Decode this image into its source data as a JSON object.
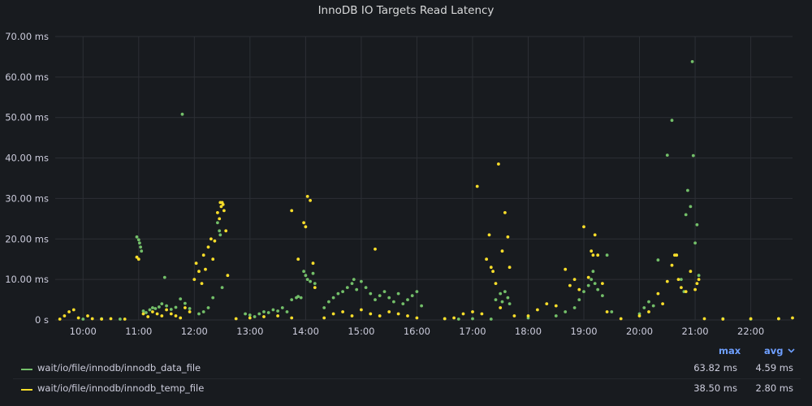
{
  "panel": {
    "title": "InnoDB IO Targets Read Latency"
  },
  "legend": {
    "header_max": "max",
    "header_avg": "avg",
    "sort_icon": "chevron-down-icon",
    "items": [
      {
        "name": "wait/io/file/innodb/innodb_data_file",
        "color": "#73bf69",
        "max": "63.82 ms",
        "avg": "4.59 ms"
      },
      {
        "name": "wait/io/file/innodb/innodb_temp_file",
        "color": "#fade2a",
        "max": "38.50 ms",
        "avg": "2.80 ms"
      }
    ]
  },
  "chart_data": {
    "type": "scatter",
    "title": "InnoDB IO Targets Read Latency",
    "xlabel": "",
    "ylabel": "",
    "x_ticks": [
      "10:00",
      "11:00",
      "12:00",
      "13:00",
      "14:00",
      "15:00",
      "16:00",
      "17:00",
      "18:00",
      "19:00",
      "20:00",
      "21:00",
      "22:00"
    ],
    "y_ticks": [
      "0 s",
      "10.00 ms",
      "20.00 ms",
      "30.00 ms",
      "40.00 ms",
      "50.00 ms",
      "60.00 ms",
      "70.00 ms"
    ],
    "xlim": [
      "09:30",
      "22:45"
    ],
    "ylim": [
      0,
      70
    ],
    "y_unit": "ms",
    "grid": true,
    "legend_position": "bottom",
    "series": [
      {
        "name": "wait/io/file/innodb/innodb_data_file",
        "color": "#73bf69",
        "points": [
          [
            "10:00",
            0.2
          ],
          [
            "10:20",
            0.3
          ],
          [
            "10:40",
            0.2
          ],
          [
            "10:58",
            20.5
          ],
          [
            "11:00",
            19.8
          ],
          [
            "11:01",
            19.0
          ],
          [
            "11:02",
            18.0
          ],
          [
            "11:03",
            17.0
          ],
          [
            "11:05",
            2.2
          ],
          [
            "11:08",
            1.8
          ],
          [
            "11:12",
            2.5
          ],
          [
            "11:15",
            3.0
          ],
          [
            "11:18",
            2.8
          ],
          [
            "11:22",
            3.2
          ],
          [
            "11:25",
            4.0
          ],
          [
            "11:28",
            10.5
          ],
          [
            "11:30",
            3.5
          ],
          [
            "11:35",
            2.6
          ],
          [
            "11:40",
            3.1
          ],
          [
            "11:45",
            5.2
          ],
          [
            "11:50",
            4.1
          ],
          [
            "11:55",
            2.8
          ],
          [
            "11:47",
            50.8
          ],
          [
            "12:05",
            1.5
          ],
          [
            "12:10",
            2.0
          ],
          [
            "12:15",
            3.0
          ],
          [
            "12:20",
            5.5
          ],
          [
            "12:25",
            24.0
          ],
          [
            "12:27",
            22.0
          ],
          [
            "12:28",
            21.0
          ],
          [
            "12:30",
            8.0
          ],
          [
            "12:55",
            1.5
          ],
          [
            "13:00",
            1.2
          ],
          [
            "13:05",
            0.8
          ],
          [
            "13:10",
            1.5
          ],
          [
            "13:15",
            2.0
          ],
          [
            "13:20",
            1.8
          ],
          [
            "13:25",
            2.5
          ],
          [
            "13:30",
            2.2
          ],
          [
            "13:35",
            3.0
          ],
          [
            "13:40",
            2.0
          ],
          [
            "13:45",
            5.0
          ],
          [
            "13:50",
            5.5
          ],
          [
            "13:52",
            5.8
          ],
          [
            "13:55",
            5.5
          ],
          [
            "13:58",
            12.0
          ],
          [
            "14:00",
            11.0
          ],
          [
            "14:02",
            10.0
          ],
          [
            "14:05",
            9.5
          ],
          [
            "14:08",
            11.5
          ],
          [
            "14:10",
            9.0
          ],
          [
            "14:20",
            3.0
          ],
          [
            "14:25",
            4.5
          ],
          [
            "14:30",
            5.5
          ],
          [
            "14:35",
            6.5
          ],
          [
            "14:40",
            7.0
          ],
          [
            "14:45",
            8.0
          ],
          [
            "14:50",
            9.0
          ],
          [
            "14:52",
            10.0
          ],
          [
            "14:55",
            7.5
          ],
          [
            "15:00",
            9.5
          ],
          [
            "15:05",
            8.0
          ],
          [
            "15:10",
            6.5
          ],
          [
            "15:15",
            5.0
          ],
          [
            "15:20",
            6.0
          ],
          [
            "15:25",
            7.0
          ],
          [
            "15:30",
            5.5
          ],
          [
            "15:35",
            4.5
          ],
          [
            "15:40",
            6.5
          ],
          [
            "15:45",
            4.0
          ],
          [
            "15:50",
            5.0
          ],
          [
            "15:55",
            6.0
          ],
          [
            "16:00",
            7.0
          ],
          [
            "16:05",
            3.5
          ],
          [
            "16:30",
            0.3
          ],
          [
            "16:45",
            0.2
          ],
          [
            "17:00",
            0.3
          ],
          [
            "17:20",
            0.2
          ],
          [
            "17:25",
            5.0
          ],
          [
            "17:30",
            6.5
          ],
          [
            "17:32",
            4.5
          ],
          [
            "17:35",
            7.0
          ],
          [
            "17:38",
            5.5
          ],
          [
            "17:40",
            4.0
          ],
          [
            "18:00",
            0.5
          ],
          [
            "18:30",
            1.0
          ],
          [
            "18:40",
            2.0
          ],
          [
            "18:50",
            3.0
          ],
          [
            "18:55",
            5.0
          ],
          [
            "19:00",
            7.0
          ],
          [
            "19:05",
            8.5
          ],
          [
            "19:08",
            10.0
          ],
          [
            "19:10",
            12.0
          ],
          [
            "19:12",
            9.0
          ],
          [
            "19:15",
            7.5
          ],
          [
            "19:20",
            6.0
          ],
          [
            "19:25",
            16.0
          ],
          [
            "19:30",
            2.0
          ],
          [
            "20:00",
            1.5
          ],
          [
            "20:05",
            3.0
          ],
          [
            "20:10",
            4.5
          ],
          [
            "20:15",
            3.5
          ],
          [
            "20:20",
            14.8
          ],
          [
            "20:30",
            40.7
          ],
          [
            "20:35",
            49.3
          ],
          [
            "20:40",
            16.0
          ],
          [
            "20:45",
            10.0
          ],
          [
            "20:50",
            26.0
          ],
          [
            "20:52",
            32.0
          ],
          [
            "20:55",
            28.0
          ],
          [
            "20:57",
            63.8
          ],
          [
            "20:58",
            40.6
          ],
          [
            "21:00",
            19.0
          ],
          [
            "21:02",
            23.5
          ],
          [
            "21:04",
            11.0
          ],
          [
            "20:48",
            7.0
          ],
          [
            "21:30",
            0.3
          ],
          [
            "22:00",
            0.2
          ],
          [
            "22:30",
            0.3
          ]
        ]
      },
      {
        "name": "wait/io/file/innodb/innodb_temp_file",
        "color": "#fade2a",
        "points": [
          [
            "09:35",
            0.2
          ],
          [
            "09:40",
            1.0
          ],
          [
            "09:45",
            2.0
          ],
          [
            "09:50",
            2.5
          ],
          [
            "09:55",
            0.5
          ],
          [
            "10:05",
            1.0
          ],
          [
            "10:10",
            0.3
          ],
          [
            "10:20",
            0.2
          ],
          [
            "10:30",
            0.3
          ],
          [
            "10:45",
            0.2
          ],
          [
            "10:58",
            15.5
          ],
          [
            "11:00",
            15.0
          ],
          [
            "11:05",
            1.5
          ],
          [
            "11:10",
            0.8
          ],
          [
            "11:15",
            2.0
          ],
          [
            "11:20",
            1.5
          ],
          [
            "11:25",
            1.0
          ],
          [
            "11:30",
            2.5
          ],
          [
            "11:35",
            1.5
          ],
          [
            "11:40",
            1.0
          ],
          [
            "11:45",
            0.5
          ],
          [
            "11:50",
            3.0
          ],
          [
            "11:55",
            2.0
          ],
          [
            "12:00",
            10.0
          ],
          [
            "12:02",
            14.0
          ],
          [
            "12:05",
            12.0
          ],
          [
            "12:08",
            9.0
          ],
          [
            "12:10",
            16.0
          ],
          [
            "12:12",
            12.5
          ],
          [
            "12:15",
            18.0
          ],
          [
            "12:18",
            20.0
          ],
          [
            "12:20",
            15.0
          ],
          [
            "12:22",
            19.5
          ],
          [
            "12:25",
            26.5
          ],
          [
            "12:27",
            25.0
          ],
          [
            "12:28",
            29.0
          ],
          [
            "12:29",
            28.0
          ],
          [
            "12:30",
            29.0
          ],
          [
            "12:31",
            28.5
          ],
          [
            "12:32",
            27.0
          ],
          [
            "12:34",
            22.0
          ],
          [
            "12:36",
            11.0
          ],
          [
            "12:45",
            0.3
          ],
          [
            "13:00",
            0.5
          ],
          [
            "13:15",
            0.8
          ],
          [
            "13:30",
            1.0
          ],
          [
            "13:45",
            0.5
          ],
          [
            "13:45",
            27.0
          ],
          [
            "13:52",
            15.0
          ],
          [
            "13:58",
            24.0
          ],
          [
            "14:00",
            23.0
          ],
          [
            "14:02",
            30.5
          ],
          [
            "14:05",
            29.5
          ],
          [
            "14:08",
            14.0
          ],
          [
            "14:10",
            8.0
          ],
          [
            "14:20",
            0.5
          ],
          [
            "14:30",
            1.5
          ],
          [
            "14:40",
            2.0
          ],
          [
            "14:50",
            1.0
          ],
          [
            "15:00",
            2.5
          ],
          [
            "15:10",
            1.5
          ],
          [
            "15:15",
            17.5
          ],
          [
            "15:20",
            1.0
          ],
          [
            "15:30",
            2.0
          ],
          [
            "15:40",
            1.5
          ],
          [
            "15:50",
            1.0
          ],
          [
            "16:00",
            0.5
          ],
          [
            "16:30",
            0.3
          ],
          [
            "16:40",
            0.5
          ],
          [
            "16:50",
            1.5
          ],
          [
            "17:00",
            2.0
          ],
          [
            "17:05",
            33.0
          ],
          [
            "17:10",
            1.5
          ],
          [
            "17:15",
            15.0
          ],
          [
            "17:18",
            21.0
          ],
          [
            "17:20",
            13.0
          ],
          [
            "17:22",
            12.0
          ],
          [
            "17:25",
            9.0
          ],
          [
            "17:28",
            38.5
          ],
          [
            "17:30",
            3.0
          ],
          [
            "17:32",
            17.0
          ],
          [
            "17:35",
            26.5
          ],
          [
            "17:38",
            20.5
          ],
          [
            "17:40",
            13.0
          ],
          [
            "17:45",
            1.0
          ],
          [
            "18:00",
            1.0
          ],
          [
            "18:10",
            2.5
          ],
          [
            "18:20",
            4.0
          ],
          [
            "18:30",
            3.5
          ],
          [
            "18:40",
            12.5
          ],
          [
            "18:45",
            8.5
          ],
          [
            "18:50",
            10.0
          ],
          [
            "18:55",
            7.5
          ],
          [
            "19:00",
            23.0
          ],
          [
            "19:05",
            10.5
          ],
          [
            "19:08",
            17.0
          ],
          [
            "19:10",
            16.0
          ],
          [
            "19:12",
            21.0
          ],
          [
            "19:15",
            16.0
          ],
          [
            "19:20",
            9.0
          ],
          [
            "19:25",
            2.0
          ],
          [
            "19:40",
            0.3
          ],
          [
            "20:00",
            1.0
          ],
          [
            "20:10",
            2.0
          ],
          [
            "20:20",
            6.5
          ],
          [
            "20:25",
            4.0
          ],
          [
            "20:30",
            9.5
          ],
          [
            "20:35",
            13.5
          ],
          [
            "20:38",
            16.0
          ],
          [
            "20:40",
            16.0
          ],
          [
            "20:42",
            10.0
          ],
          [
            "20:45",
            8.0
          ],
          [
            "20:50",
            7.0
          ],
          [
            "20:55",
            12.0
          ],
          [
            "21:00",
            7.5
          ],
          [
            "21:02",
            9.0
          ],
          [
            "21:04",
            10.0
          ],
          [
            "21:10",
            0.3
          ],
          [
            "21:30",
            0.2
          ],
          [
            "22:00",
            0.3
          ],
          [
            "22:30",
            0.3
          ],
          [
            "22:45",
            0.5
          ]
        ]
      }
    ]
  }
}
